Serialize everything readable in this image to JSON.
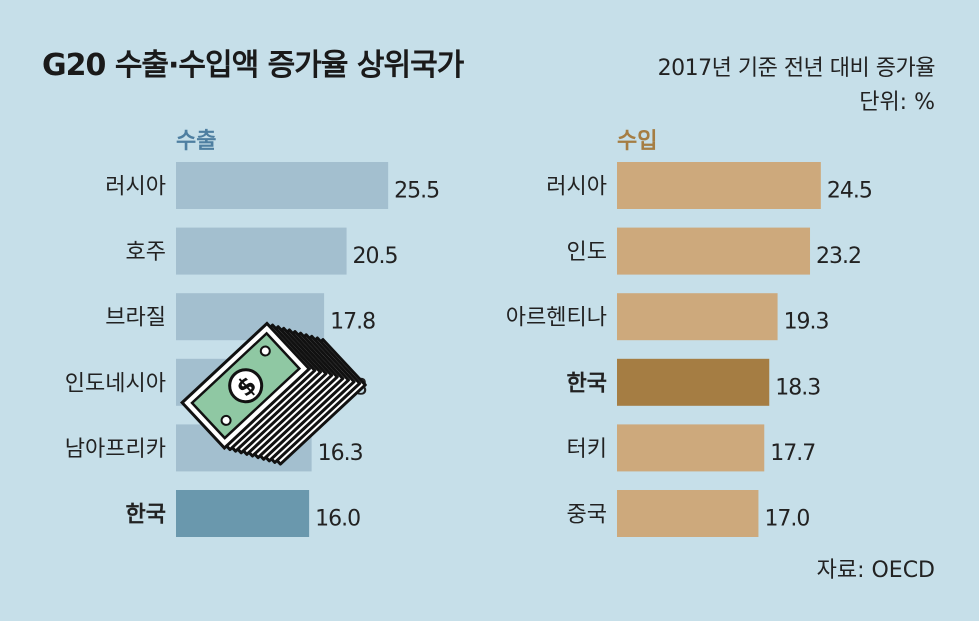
{
  "header": {
    "title": "G20 수출·수입액 증가율 상위국가",
    "subtitle": "2017년 기준 전년 대비 증가율",
    "unit": "단위: %"
  },
  "footer": {
    "source": "자료: OECD"
  },
  "colors": {
    "export_bar": "#a3bfcf",
    "export_highlight": "#6a98ad",
    "export_title": "#4e7fa1",
    "import_bar": "#cda97c",
    "import_highlight": "#a57d43",
    "import_title": "#a57d43",
    "background": "#c6dfe9"
  },
  "illustration": {
    "icon": "money-stack-icon",
    "symbol": "$"
  },
  "chart_data": [
    {
      "type": "bar",
      "orientation": "horizontal",
      "title": "수출",
      "categories": [
        "러시아",
        "호주",
        "브라질",
        "인도네시아",
        "남아프리카",
        "한국"
      ],
      "values": [
        25.5,
        20.5,
        17.8,
        16.8,
        16.3,
        16.0
      ],
      "value_labels": [
        "25.5",
        "20.5",
        "17.8",
        "16.8",
        "16.3",
        "16.0"
      ],
      "highlight": "한국"
    },
    {
      "type": "bar",
      "orientation": "horizontal",
      "title": "수입",
      "categories": [
        "러시아",
        "인도",
        "아르헨티나",
        "한국",
        "터키",
        "중국"
      ],
      "values": [
        24.5,
        23.2,
        19.3,
        18.3,
        17.7,
        17.0
      ],
      "value_labels": [
        "24.5",
        "23.2",
        "19.3",
        "18.3",
        "17.7",
        "17.0"
      ],
      "highlight": "한국"
    }
  ]
}
